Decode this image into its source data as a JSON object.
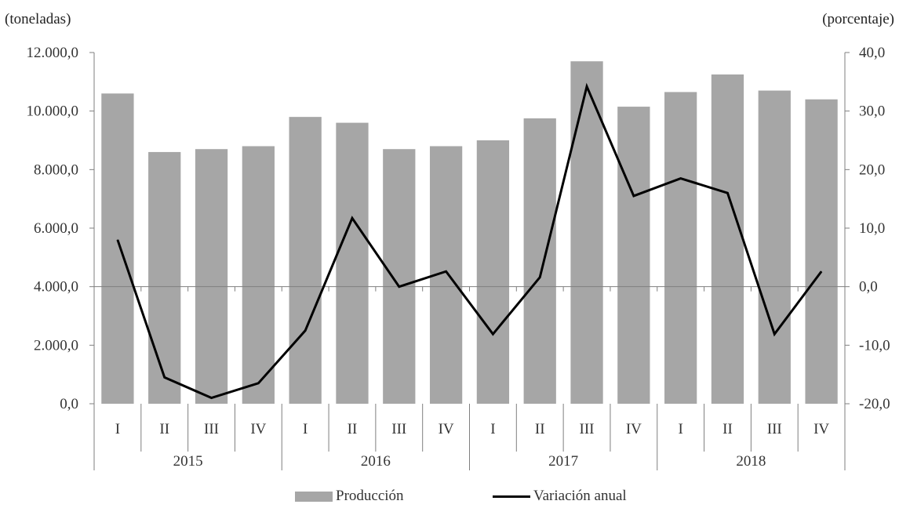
{
  "chart_data": {
    "type": "bar",
    "left_axis_label": "(toneladas)",
    "right_axis_label": "(porcentaje)",
    "years": [
      "2015",
      "2016",
      "2017",
      "2018"
    ],
    "quarters": [
      "I",
      "II",
      "III",
      "IV"
    ],
    "categories": [
      "I",
      "II",
      "III",
      "IV",
      "I",
      "II",
      "III",
      "IV",
      "I",
      "II",
      "III",
      "IV",
      "I",
      "II",
      "III",
      "IV"
    ],
    "y_left": {
      "min": 0,
      "max": 12000,
      "step": 2000,
      "tick_labels": [
        "0,0",
        "2.000,0",
        "4.000,0",
        "6.000,0",
        "8.000,0",
        "10.000,0",
        "12.000,0"
      ]
    },
    "y_right": {
      "min": -20,
      "max": 40,
      "step": 10,
      "tick_labels": [
        "-20,0",
        "-10,0",
        "0,0",
        "10,0",
        "20,0",
        "30,0",
        "40,0"
      ]
    },
    "series": [
      {
        "name": "Producción",
        "type": "bar",
        "axis": "left",
        "color": "#a6a6a6",
        "values": [
          10600,
          8600,
          8700,
          8800,
          9800,
          9600,
          8700,
          8800,
          9000,
          9750,
          11700,
          10150,
          10650,
          11250,
          10700,
          10400
        ]
      },
      {
        "name": "Variación anual",
        "type": "line",
        "axis": "right",
        "color": "#000000",
        "values": [
          8.0,
          -15.5,
          -19.0,
          -16.5,
          -7.5,
          11.7,
          0.0,
          2.6,
          -8.1,
          1.6,
          34.2,
          15.5,
          18.5,
          16.0,
          -8.1,
          2.6
        ]
      }
    ],
    "grid": false,
    "legend_position": "bottom"
  }
}
